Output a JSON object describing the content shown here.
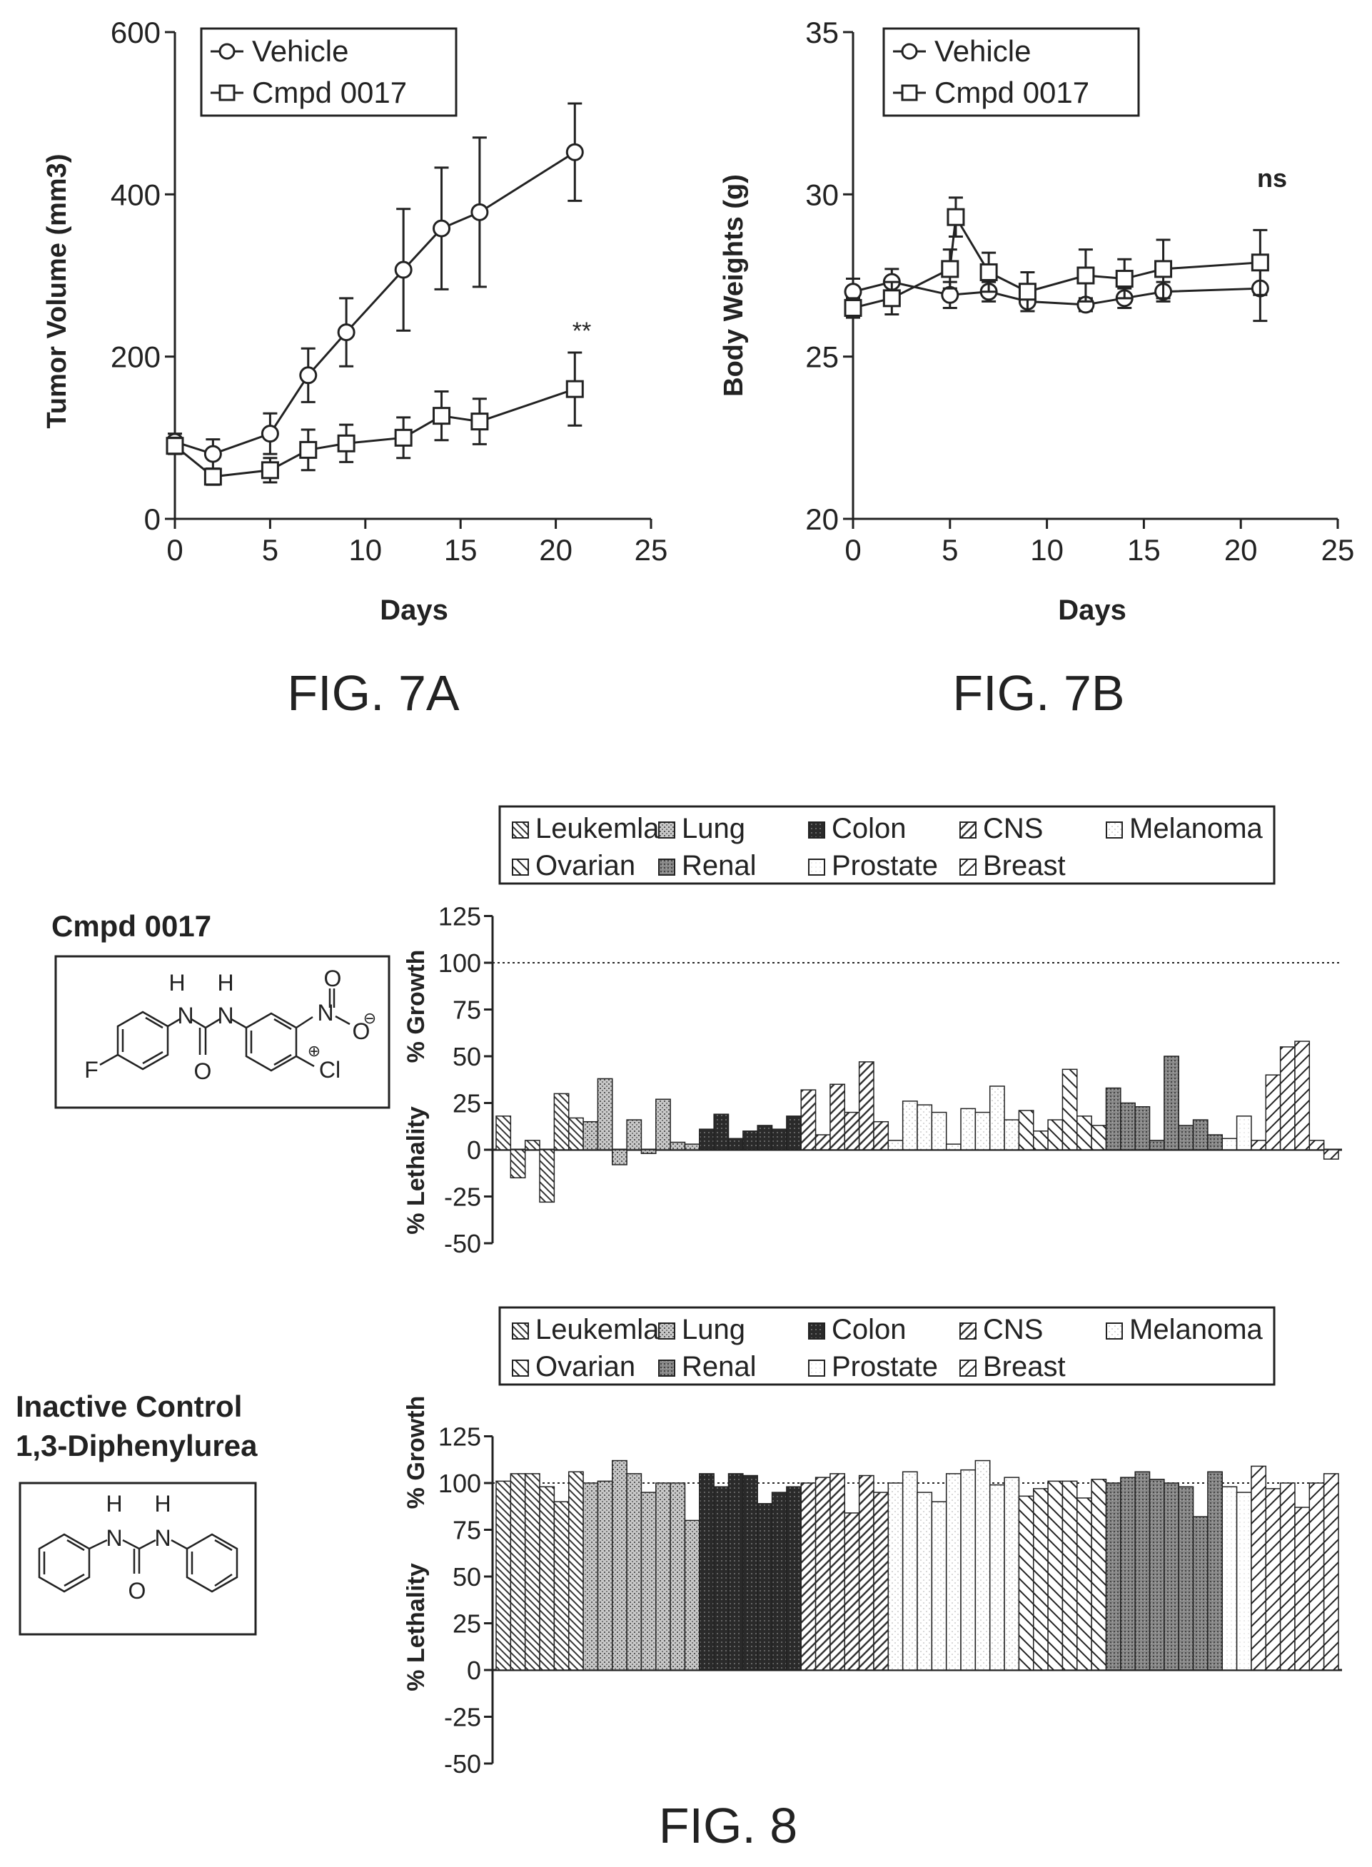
{
  "chart_data": [
    {
      "type": "line",
      "title": "",
      "xlabel": "Days",
      "ylabel": "Tumor Volume (mm3)",
      "xlim": [
        0,
        25
      ],
      "ylim": [
        0,
        600
      ],
      "x_ticks": [
        0,
        5,
        10,
        15,
        20,
        25
      ],
      "y_ticks": [
        0,
        200,
        400,
        600
      ],
      "legend": {
        "placement": "top-left"
      },
      "series": [
        {
          "name": "Vehicle",
          "marker": "circle",
          "x": [
            0,
            2,
            5,
            7,
            9,
            12,
            14,
            16,
            21
          ],
          "y": [
            95,
            80,
            105,
            177,
            230,
            307,
            358,
            378,
            452
          ],
          "err": [
            10,
            18,
            25,
            33,
            42,
            75,
            75,
            92,
            60
          ]
        },
        {
          "name": "Cmpd 0017",
          "marker": "square",
          "x": [
            0,
            2,
            5,
            7,
            9,
            12,
            14,
            16,
            21
          ],
          "y": [
            90,
            52,
            60,
            85,
            93,
            100,
            127,
            120,
            160
          ],
          "err": [
            10,
            10,
            15,
            25,
            23,
            25,
            30,
            28,
            45
          ]
        }
      ],
      "annotations": [
        {
          "text": "**",
          "x": 21,
          "y": 225
        }
      ]
    },
    {
      "type": "line",
      "title": "",
      "xlabel": "Days",
      "ylabel": "Body Weights (g)",
      "xlim": [
        0,
        25
      ],
      "ylim": [
        20,
        35
      ],
      "x_ticks": [
        0,
        5,
        10,
        15,
        20,
        25
      ],
      "y_ticks": [
        20,
        25,
        30,
        35
      ],
      "legend": {
        "placement": "top-left"
      },
      "series": [
        {
          "name": "Vehicle",
          "marker": "circle",
          "x": [
            0,
            2,
            5,
            7,
            9,
            12,
            14,
            16,
            21
          ],
          "y": [
            27.0,
            27.3,
            26.9,
            27.0,
            26.7,
            26.6,
            26.8,
            27.0,
            27.1
          ],
          "err": [
            0.4,
            0.4,
            0.4,
            0.3,
            0.3,
            0.2,
            0.3,
            0.3,
            1.0
          ]
        },
        {
          "name": "Cmpd 0017",
          "marker": "square",
          "x": [
            0,
            2,
            5,
            5.3,
            7,
            9,
            12,
            14,
            16,
            21
          ],
          "y": [
            26.5,
            26.8,
            27.7,
            29.3,
            27.6,
            27.0,
            27.5,
            27.4,
            27.7,
            27.9
          ],
          "err": [
            0.3,
            0.5,
            0.6,
            0.6,
            0.6,
            0.6,
            0.8,
            0.6,
            0.9,
            1.0
          ]
        }
      ],
      "annotations": [
        {
          "text": "ns",
          "x": 21,
          "y": 30.4
        }
      ]
    },
    {
      "type": "bar",
      "compound_label": "Cmpd 0017",
      "ylabel_top": "% Growth",
      "ylabel_bottom": "% Lethality",
      "ylim": [
        -50,
        125
      ],
      "y_ticks": [
        -50,
        -25,
        0,
        25,
        50,
        75,
        100,
        125
      ],
      "reference_line": 100,
      "legend": [
        "Leukemla",
        "Lung",
        "Colon",
        "CNS",
        "Melanoma",
        "Ovarian",
        "Renal",
        "Prostate",
        "Breast"
      ],
      "series": [
        {
          "name": "Leukemla",
          "values": [
            18,
            -15,
            5,
            -28,
            30,
            17
          ]
        },
        {
          "name": "Lung",
          "values": [
            15,
            38,
            -8,
            16,
            -2,
            27,
            4,
            3
          ]
        },
        {
          "name": "Colon",
          "values": [
            11,
            19,
            6,
            10,
            13,
            11,
            18
          ]
        },
        {
          "name": "CNS",
          "values": [
            32,
            8,
            35,
            20,
            47,
            15
          ]
        },
        {
          "name": "Melanoma",
          "values": [
            5,
            26,
            24,
            20,
            3,
            22,
            20,
            34,
            16
          ]
        },
        {
          "name": "Ovarian",
          "values": [
            21,
            10,
            16,
            43,
            18,
            13
          ]
        },
        {
          "name": "Renal",
          "values": [
            33,
            25,
            23,
            5,
            50,
            13,
            16,
            8
          ]
        },
        {
          "name": "Prostate",
          "values": [
            6,
            18
          ]
        },
        {
          "name": "Breast",
          "values": [
            5,
            40,
            55,
            58,
            5,
            -5
          ]
        }
      ]
    },
    {
      "type": "bar",
      "compound_label": "Inactive Control\n1,3-Diphenylurea",
      "ylabel_top": "% Growth",
      "ylabel_bottom": "% Lethality",
      "ylim": [
        -50,
        125
      ],
      "y_ticks": [
        -50,
        -25,
        0,
        25,
        50,
        75,
        100,
        125
      ],
      "reference_line": 100,
      "legend": [
        "Leukemla",
        "Lung",
        "Colon",
        "CNS",
        "Melanoma",
        "Ovarian",
        "Renal",
        "Prostate",
        "Breast"
      ],
      "series": [
        {
          "name": "Leukemla",
          "values": [
            101,
            105,
            105,
            98,
            90,
            106
          ]
        },
        {
          "name": "Lung",
          "values": [
            100,
            101,
            112,
            105,
            95,
            100,
            100,
            80
          ]
        },
        {
          "name": "Colon",
          "values": [
            105,
            98,
            105,
            104,
            89,
            95,
            98
          ]
        },
        {
          "name": "CNS",
          "values": [
            100,
            103,
            105,
            84,
            104,
            95
          ]
        },
        {
          "name": "Melanoma",
          "values": [
            100,
            106,
            95,
            90,
            105,
            107,
            112,
            99,
            103
          ]
        },
        {
          "name": "Ovarian",
          "values": [
            93,
            97,
            101,
            101,
            92,
            102
          ]
        },
        {
          "name": "Renal",
          "values": [
            100,
            103,
            106,
            102,
            100,
            98,
            82,
            106
          ]
        },
        {
          "name": "Prostate",
          "values": [
            98,
            95
          ]
        },
        {
          "name": "Breast",
          "values": [
            109,
            97,
            100,
            87,
            100,
            105
          ]
        }
      ]
    }
  ],
  "structures": {
    "cmpd_0017": {
      "atoms": [
        "H",
        "H",
        "N",
        "N",
        "O",
        "F",
        "Cl",
        "O",
        "N",
        "O"
      ],
      "charges": [
        "⊕",
        "⊖"
      ]
    },
    "diphenylurea": {
      "atoms": [
        "H",
        "H",
        "N",
        "N",
        "O"
      ]
    }
  },
  "captions": {
    "fig7a": "FIG. 7A",
    "fig7b": "FIG. 7B",
    "fig8": "FIG. 8"
  }
}
